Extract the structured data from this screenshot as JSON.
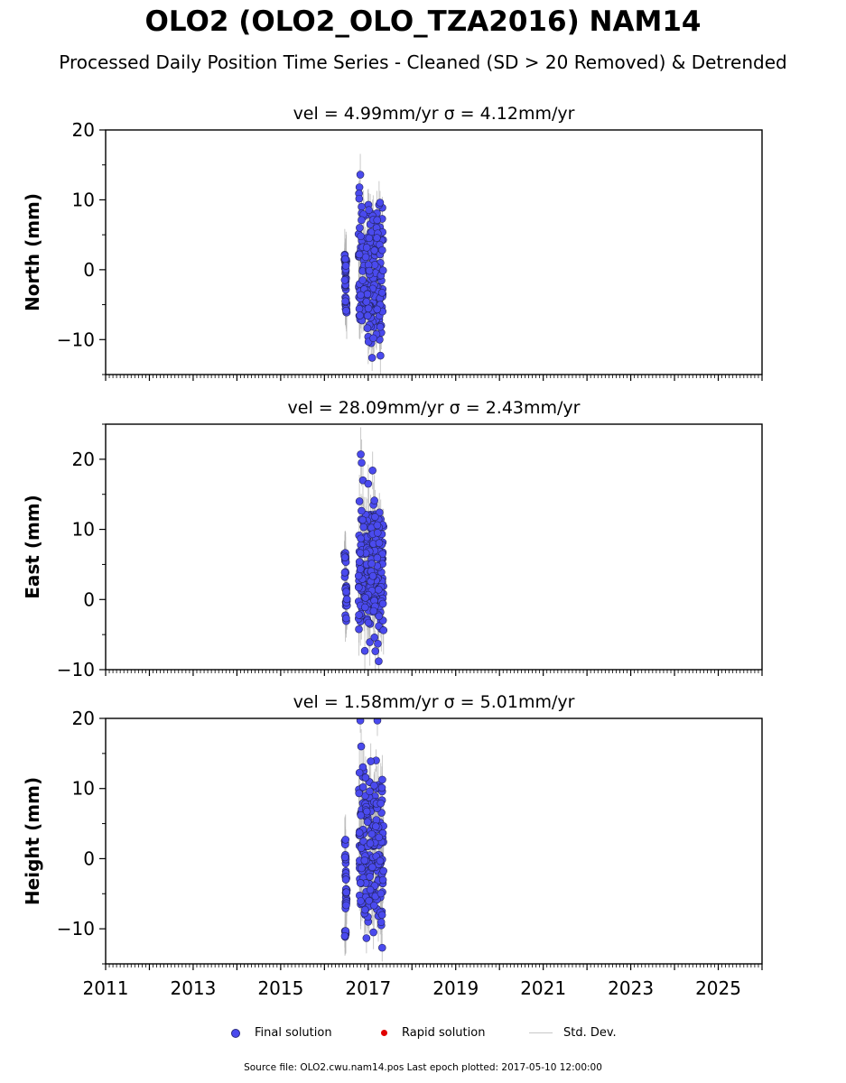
{
  "title": "OLO2 (OLO2_OLO_TZA2016) NAM14",
  "subtitle": "Processed Daily Position Time Series - Cleaned (SD > 20 Removed) & Detrended",
  "legend": {
    "final": "Final solution",
    "rapid": "Rapid solution",
    "std": "Std. Dev."
  },
  "footer": "Source file: OLO2.cwu.nam14.pos  Last epoch plotted: 2017-05-10 12:00:00",
  "colors": {
    "final": "#4a4aee",
    "rapid": "#e00000",
    "std": "#b4b4b4"
  },
  "chart_data": [
    {
      "type": "scatter",
      "title": "vel = 4.99mm/yr   σ = 4.12mm/yr",
      "ylabel": "North (mm)",
      "xlim": [
        2011,
        2026
      ],
      "ylim": [
        -15,
        20
      ],
      "yticks": [
        -10,
        0,
        10,
        20
      ],
      "xticks": [
        2011,
        2013,
        2015,
        2017,
        2019,
        2021,
        2023,
        2025
      ],
      "xtick_labels_shown": false,
      "data_time_range": [
        2016.45,
        2017.36
      ],
      "series": [
        {
          "name": "Final solution",
          "points": [
            [
              2016.47,
              1.2
            ],
            [
              2016.48,
              -0.5
            ],
            [
              2016.49,
              -4.5
            ],
            [
              2016.5,
              -5.6
            ],
            [
              2016.48,
              -2.3
            ],
            [
              2016.49,
              0.8
            ],
            [
              2016.82,
              13.6
            ],
            [
              2016.8,
              11.8
            ],
            [
              2016.79,
              10.9
            ],
            [
              2016.85,
              9.0
            ],
            [
              2016.9,
              7.6
            ],
            [
              2016.78,
              5.1
            ],
            [
              2016.83,
              3.2
            ],
            [
              2016.88,
              0.1
            ],
            [
              2016.95,
              -2.0
            ],
            [
              2017.0,
              -3.5
            ],
            [
              2017.05,
              -6.5
            ],
            [
              2017.0,
              -9.6
            ],
            [
              2017.07,
              -10.5
            ],
            [
              2017.09,
              -12.6
            ],
            [
              2017.2,
              8.1
            ],
            [
              2017.26,
              -10.0
            ],
            [
              2017.28,
              -12.3
            ],
            [
              2017.3,
              -9.0
            ],
            [
              2017.15,
              -5.0
            ],
            [
              2017.1,
              -1.0
            ],
            [
              2017.18,
              2.4
            ],
            [
              2017.25,
              -7.2
            ],
            [
              2017.33,
              -3.5
            ],
            [
              2016.93,
              4.2
            ]
          ]
        },
        {
          "name": "Rapid solution",
          "points": []
        }
      ]
    },
    {
      "type": "scatter",
      "title": "vel = 28.09mm/yr   σ = 2.43mm/yr",
      "ylabel": "East (mm)",
      "xlim": [
        2011,
        2026
      ],
      "ylim": [
        -10,
        25
      ],
      "yticks": [
        -10,
        0,
        10,
        20
      ],
      "xticks": [
        2011,
        2013,
        2015,
        2017,
        2019,
        2021,
        2023,
        2025
      ],
      "xtick_labels_shown": false,
      "data_time_range": [
        2016.45,
        2017.36
      ],
      "series": [
        {
          "name": "Final solution",
          "points": [
            [
              2016.47,
              6.2
            ],
            [
              2016.48,
              3.8
            ],
            [
              2016.49,
              1.5
            ],
            [
              2016.5,
              -0.5
            ],
            [
              2016.49,
              -2.8
            ],
            [
              2016.48,
              5.5
            ],
            [
              2016.83,
              20.7
            ],
            [
              2016.85,
              19.5
            ],
            [
              2016.88,
              17.0
            ],
            [
              2016.8,
              14.0
            ],
            [
              2016.9,
              11.5
            ],
            [
              2016.95,
              9.0
            ],
            [
              2017.0,
              16.5
            ],
            [
              2017.1,
              18.4
            ],
            [
              2016.92,
              6.5
            ],
            [
              2017.02,
              -3.3
            ],
            [
              2016.98,
              1.8
            ],
            [
              2017.15,
              4.0
            ],
            [
              2017.2,
              -0.5
            ],
            [
              2017.24,
              -8.8
            ],
            [
              2017.22,
              -6.3
            ],
            [
              2017.3,
              -4.2
            ],
            [
              2017.28,
              -1.8
            ],
            [
              2017.33,
              5.8
            ],
            [
              2017.26,
              9.5
            ],
            [
              2017.12,
              13.5
            ],
            [
              2017.05,
              10.2
            ],
            [
              2016.86,
              4.5
            ],
            [
              2017.18,
              2.0
            ],
            [
              2017.32,
              2.5
            ]
          ]
        },
        {
          "name": "Rapid solution",
          "points": []
        }
      ]
    },
    {
      "type": "scatter",
      "title": "vel = 1.58mm/yr   σ = 5.01mm/yr",
      "ylabel": "Height (mm)",
      "xlim": [
        2011,
        2026
      ],
      "ylim": [
        -15,
        20
      ],
      "yticks": [
        -10,
        0,
        10,
        20
      ],
      "xticks": [
        2011,
        2013,
        2015,
        2017,
        2019,
        2021,
        2023,
        2025
      ],
      "xtick_labels_shown": true,
      "data_time_range": [
        2016.45,
        2017.36
      ],
      "series": [
        {
          "name": "Final solution",
          "points": [
            [
              2016.47,
              2.5
            ],
            [
              2016.48,
              0.0
            ],
            [
              2016.49,
              -2.5
            ],
            [
              2016.5,
              -4.8
            ],
            [
              2016.49,
              -6.5
            ],
            [
              2016.48,
              -10.4
            ],
            [
              2016.82,
              19.7
            ],
            [
              2016.84,
              16.0
            ],
            [
              2016.9,
              12.5
            ],
            [
              2016.8,
              9.8
            ],
            [
              2016.95,
              6.0
            ],
            [
              2016.88,
              1.5
            ],
            [
              2016.86,
              -3.0
            ],
            [
              2016.83,
              -6.5
            ],
            [
              2017.0,
              -9.0
            ],
            [
              2016.93,
              -8.0
            ],
            [
              2017.05,
              4.0
            ],
            [
              2017.1,
              8.0
            ],
            [
              2017.21,
              19.7
            ],
            [
              2017.18,
              14.0
            ],
            [
              2017.23,
              10.5
            ],
            [
              2017.25,
              4.5
            ],
            [
              2017.15,
              -1.0
            ],
            [
              2017.28,
              -5.5
            ],
            [
              2017.3,
              -9.5
            ],
            [
              2017.32,
              -12.7
            ],
            [
              2017.12,
              -10.5
            ],
            [
              2017.26,
              0.5
            ],
            [
              2017.33,
              3.0
            ],
            [
              2017.2,
              -3.5
            ]
          ]
        },
        {
          "name": "Rapid solution",
          "points": []
        }
      ]
    }
  ]
}
